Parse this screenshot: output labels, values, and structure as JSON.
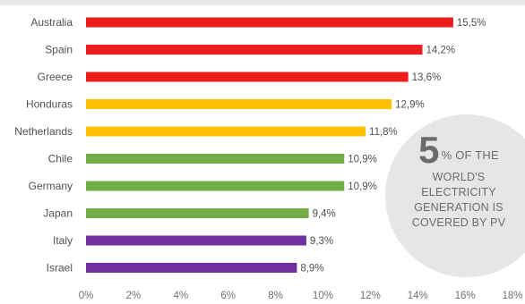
{
  "chart_data": {
    "type": "bar",
    "orientation": "horizontal",
    "categories": [
      "Australia",
      "Spain",
      "Greece",
      "Honduras",
      "Netherlands",
      "Chile",
      "Germany",
      "Japan",
      "Italy",
      "Israel"
    ],
    "values": [
      15.5,
      14.2,
      13.6,
      12.9,
      11.8,
      10.9,
      10.9,
      9.4,
      9.3,
      8.9
    ],
    "value_labels": [
      "15,5%",
      "14,2%",
      "13,6%",
      "12,9%",
      "11,8%",
      "10,9%",
      "10,9%",
      "9,4%",
      "9,3%",
      "8,9%"
    ],
    "bar_colors": [
      "#ee1c1c",
      "#ee1c1c",
      "#ee1c1c",
      "#ffc000",
      "#ffc000",
      "#70ad47",
      "#70ad47",
      "#70ad47",
      "#7030a0",
      "#7030a0"
    ],
    "x_ticks": [
      0,
      2,
      4,
      6,
      8,
      10,
      12,
      14,
      16,
      18
    ],
    "x_tick_labels": [
      "0%",
      "2%",
      "4%",
      "6%",
      "8%",
      "10%",
      "12%",
      "14%",
      "16%",
      "18%"
    ],
    "xlim": [
      0,
      18
    ],
    "grid": false,
    "title": "",
    "xlabel": "",
    "ylabel": ""
  },
  "callout": {
    "big": "5",
    "line1_rest": "% OF THE",
    "line2": "WORLD'S",
    "line3": "ELECTRICITY",
    "line4": "GENERATION IS",
    "line5": "COVERED BY PV",
    "background": "#e6e6e6"
  }
}
